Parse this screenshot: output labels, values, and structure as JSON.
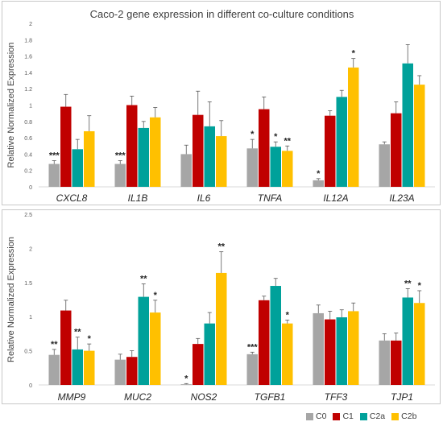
{
  "chart_data": [
    {
      "type": "bar",
      "title": "Caco-2 gene expression in different co-culture conditions",
      "ylabel": "Relative Normalized Expression",
      "xlabel": "",
      "ylim": [
        0,
        2
      ],
      "yticks": [
        "0",
        "0.2",
        "0.4",
        "0.6",
        "0.8",
        "1",
        "1.2",
        "1.4",
        "1.6",
        "1.8",
        "2"
      ],
      "grid": false,
      "categories": [
        "CXCL8",
        "IL1B",
        "IL6",
        "TNFA",
        "IL12A",
        "IL23A"
      ],
      "series": [
        {
          "name": "C0",
          "color": "#a6a6a6",
          "values": [
            0.28,
            0.28,
            0.4,
            0.47,
            0.08,
            0.52
          ],
          "errors": [
            0.04,
            0.04,
            0.11,
            0.11,
            0.02,
            0.03
          ],
          "annotations": [
            "***",
            "***",
            "",
            "*",
            "*",
            ""
          ]
        },
        {
          "name": "C1",
          "color": "#c00000",
          "values": [
            0.98,
            1.0,
            0.88,
            0.95,
            0.87,
            0.9
          ],
          "errors": [
            0.15,
            0.11,
            0.29,
            0.15,
            0.06,
            0.14
          ],
          "annotations": [
            "",
            "",
            "",
            "",
            "",
            ""
          ]
        },
        {
          "name": "C2a",
          "color": "#00a19a",
          "values": [
            0.46,
            0.72,
            0.74,
            0.49,
            1.1,
            1.51
          ],
          "errors": [
            0.12,
            0.08,
            0.3,
            0.06,
            0.08,
            0.23
          ],
          "annotations": [
            "",
            "",
            "",
            "*",
            "",
            ""
          ]
        },
        {
          "name": "C2b",
          "color": "#ffc000",
          "values": [
            0.68,
            0.85,
            0.62,
            0.44,
            1.46,
            1.25
          ],
          "errors": [
            0.19,
            0.12,
            0.19,
            0.06,
            0.11,
            0.11
          ],
          "annotations": [
            "",
            "",
            "",
            "**",
            "*",
            ""
          ]
        }
      ]
    },
    {
      "type": "bar",
      "title": "",
      "ylabel": "Relative Normalized Expression",
      "xlabel": "",
      "ylim": [
        0,
        2.5
      ],
      "yticks": [
        "0",
        "0.5",
        "1",
        "1.5",
        "2",
        "2.5"
      ],
      "grid": false,
      "categories": [
        "MMP9",
        "MUC2",
        "NOS2",
        "TGFB1",
        "TFF3",
        "TJP1"
      ],
      "series": [
        {
          "name": "C0",
          "color": "#a6a6a6",
          "values": [
            0.44,
            0.37,
            0.01,
            0.45,
            1.05,
            0.65
          ],
          "errors": [
            0.08,
            0.08,
            0.01,
            0.03,
            0.12,
            0.1
          ],
          "annotations": [
            "**",
            "",
            "*",
            "***",
            "",
            ""
          ]
        },
        {
          "name": "C1",
          "color": "#c00000",
          "values": [
            1.09,
            0.41,
            0.6,
            1.24,
            0.96,
            0.65
          ],
          "errors": [
            0.15,
            0.09,
            0.08,
            0.06,
            0.12,
            0.11
          ],
          "annotations": [
            "",
            "",
            "",
            "",
            "",
            ""
          ]
        },
        {
          "name": "C2a",
          "color": "#00a19a",
          "values": [
            0.52,
            1.29,
            0.9,
            1.45,
            0.99,
            1.28
          ],
          "errors": [
            0.18,
            0.19,
            0.16,
            0.11,
            0.11,
            0.13
          ],
          "annotations": [
            "**",
            "**",
            "",
            "",
            "",
            "**"
          ]
        },
        {
          "name": "C2b",
          "color": "#ffc000",
          "values": [
            0.5,
            1.06,
            1.64,
            0.9,
            1.08,
            1.2
          ],
          "errors": [
            0.1,
            0.18,
            0.31,
            0.05,
            0.12,
            0.18
          ],
          "annotations": [
            "*",
            "*",
            "**",
            "*",
            "",
            "*"
          ]
        }
      ]
    }
  ],
  "legend": {
    "position": "bottom-right",
    "items": [
      {
        "label": "C0",
        "color": "#a6a6a6"
      },
      {
        "label": "C1",
        "color": "#c00000"
      },
      {
        "label": "C2a",
        "color": "#00a19a"
      },
      {
        "label": "C2b",
        "color": "#ffc000"
      }
    ]
  }
}
